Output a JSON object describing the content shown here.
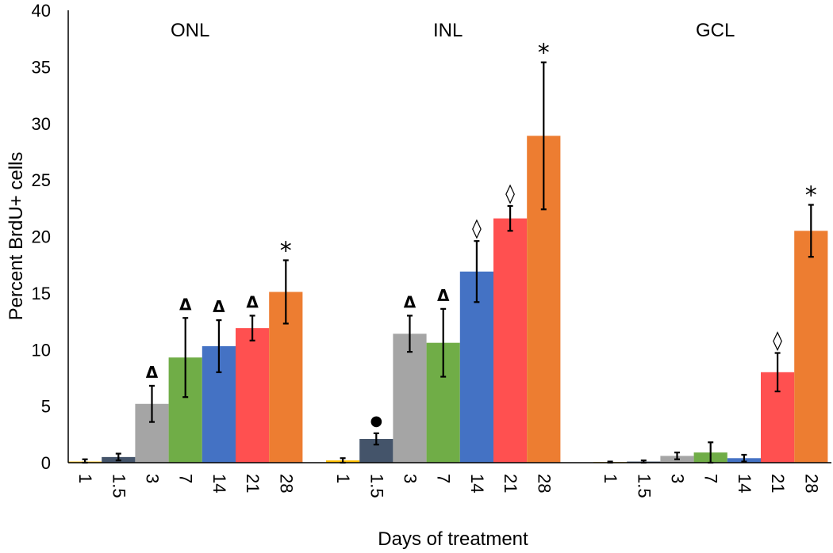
{
  "chart_data": {
    "type": "bar",
    "ylabel": "Percent BrdU+ cells",
    "xlabel": "Days of treatment",
    "ylim": [
      0,
      40
    ],
    "yticks": [
      "0",
      "5",
      "10",
      "15",
      "20",
      "25",
      "30",
      "35",
      "40"
    ],
    "categories": [
      "1",
      "1.5",
      "3",
      "7",
      "14",
      "21",
      "28"
    ],
    "colors": [
      "#ffc000",
      "#44546a",
      "#a5a5a5",
      "#70ad47",
      "#4472c4",
      "#ff5050",
      "#ed7d31"
    ],
    "grid": false,
    "legend": "none",
    "groups": [
      {
        "name": "ONL",
        "values": [
          0.1,
          0.5,
          5.2,
          9.3,
          10.3,
          11.9,
          15.1
        ],
        "errors": [
          0.2,
          0.3,
          1.6,
          3.5,
          2.3,
          1.1,
          2.8
        ],
        "annotations": [
          "",
          "",
          "Δ",
          "Δ",
          "Δ",
          "Δ",
          "*"
        ]
      },
      {
        "name": "INL",
        "values": [
          0.2,
          2.1,
          11.4,
          10.6,
          16.9,
          21.6,
          28.9
        ],
        "errors": [
          0.2,
          0.5,
          1.6,
          3.0,
          2.7,
          1.1,
          6.5
        ],
        "annotations": [
          "",
          "●",
          "Δ",
          "Δ",
          "◊",
          "◊",
          "*"
        ]
      },
      {
        "name": "GCL",
        "values": [
          0.0,
          0.1,
          0.6,
          0.9,
          0.4,
          8.0,
          20.5
        ],
        "errors": [
          0.1,
          0.1,
          0.3,
          0.9,
          0.3,
          1.7,
          2.3
        ],
        "annotations": [
          "",
          "",
          "",
          "",
          "",
          "◊",
          "*"
        ]
      }
    ]
  }
}
